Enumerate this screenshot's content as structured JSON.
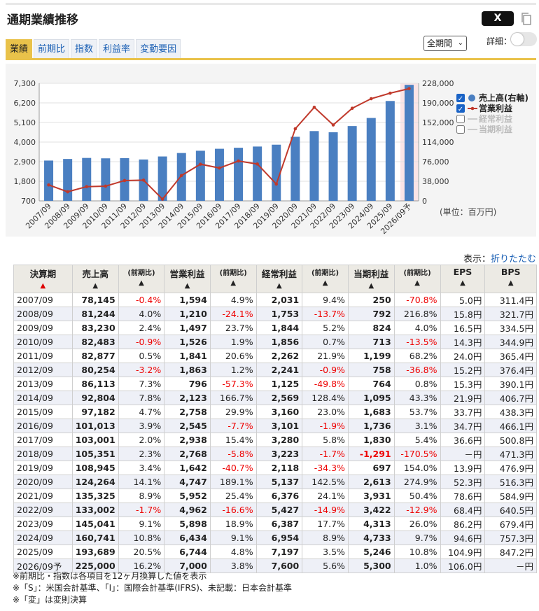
{
  "header": {
    "title": "通期業績推移",
    "x_label": "X",
    "period_select": "全期間",
    "detail_label": "詳細："
  },
  "tabs": [
    {
      "label": "業績",
      "active": true
    },
    {
      "label": "前期比"
    },
    {
      "label": "指数"
    },
    {
      "label": "利益率"
    },
    {
      "label": "変動要因"
    }
  ],
  "chart_data": {
    "type": "bar+line",
    "categories": [
      "2007/09",
      "2008/09",
      "2009/09",
      "2010/09",
      "2011/09",
      "2012/09",
      "2013/09",
      "2014/09",
      "2015/09",
      "2016/09",
      "2017/09",
      "2018/09",
      "2019/09",
      "2020/09",
      "2021/09",
      "2022/09",
      "2023/09",
      "2024/09",
      "2025/09",
      "2026/09予"
    ],
    "left_axis": {
      "ticks": [
        "7,300",
        "6,200",
        "5,100",
        "4,000",
        "2,900",
        "1,800",
        "700"
      ],
      "range": [
        700,
        7300
      ]
    },
    "right_axis": {
      "ticks": [
        "228,000",
        "190,000",
        "152,000",
        "114,000",
        "76,000",
        "38,000",
        "0"
      ],
      "range": [
        0,
        228000
      ]
    },
    "series": [
      {
        "name": "売上高(右軸)",
        "type": "bar",
        "axis": "right",
        "color": "#4a7fc1",
        "values": [
          78145,
          81244,
          83230,
          82483,
          82877,
          80254,
          86113,
          92804,
          97182,
          101013,
          103001,
          105351,
          108945,
          124264,
          135325,
          133002,
          145041,
          160741,
          193689,
          225000
        ]
      },
      {
        "name": "営業利益",
        "type": "line",
        "axis": "left",
        "color": "#c0392b",
        "values": [
          1594,
          1210,
          1497,
          1526,
          1841,
          1863,
          796,
          2123,
          2758,
          2545,
          2938,
          2768,
          1642,
          4747,
          5952,
          4962,
          5898,
          6434,
          6744,
          7000
        ]
      },
      {
        "name": "経常利益",
        "type": "line",
        "disabled": true
      },
      {
        "name": "当期利益",
        "type": "line",
        "disabled": true
      }
    ],
    "forecast_index": 19,
    "unit": "(単位：百万円)"
  },
  "table": {
    "display_label": "表示：",
    "collapse_label": "折りたたむ",
    "headers": [
      {
        "label": "決算期",
        "tri": "▲",
        "tri_red": true
      },
      {
        "label": "売上高",
        "tri": "▲"
      },
      {
        "label": "(前期比)",
        "tri": "▲",
        "sub": true
      },
      {
        "label": "営業利益",
        "tri": "▲"
      },
      {
        "label": "(前期比)",
        "tri": "▲",
        "sub": true
      },
      {
        "label": "経常利益",
        "tri": "▲"
      },
      {
        "label": "(前期比)",
        "tri": "▲",
        "sub": true
      },
      {
        "label": "当期利益",
        "tri": "▲"
      },
      {
        "label": "(前期比)",
        "tri": "▲",
        "sub": true
      },
      {
        "label": "EPS",
        "tri": "▲"
      },
      {
        "label": "BPS",
        "tri": "▲"
      }
    ],
    "rows": [
      [
        "2007/09",
        "78,145",
        "-0.4%",
        "1,594",
        "4.9%",
        "2,031",
        "9.4%",
        "250",
        "-70.8%",
        "5.0円",
        "311.4円"
      ],
      [
        "2008/09",
        "81,244",
        "4.0%",
        "1,210",
        "-24.1%",
        "1,753",
        "-13.7%",
        "792",
        "216.8%",
        "15.8円",
        "321.7円"
      ],
      [
        "2009/09",
        "83,230",
        "2.4%",
        "1,497",
        "23.7%",
        "1,844",
        "5.2%",
        "824",
        "4.0%",
        "16.5円",
        "334.5円"
      ],
      [
        "2010/09",
        "82,483",
        "-0.9%",
        "1,526",
        "1.9%",
        "1,856",
        "0.7%",
        "713",
        "-13.5%",
        "14.3円",
        "344.9円"
      ],
      [
        "2011/09",
        "82,877",
        "0.5%",
        "1,841",
        "20.6%",
        "2,262",
        "21.9%",
        "1,199",
        "68.2%",
        "24.0円",
        "365.4円"
      ],
      [
        "2012/09",
        "80,254",
        "-3.2%",
        "1,863",
        "1.2%",
        "2,241",
        "-0.9%",
        "758",
        "-36.8%",
        "15.2円",
        "376.4円"
      ],
      [
        "2013/09",
        "86,113",
        "7.3%",
        "796",
        "-57.3%",
        "1,125",
        "-49.8%",
        "764",
        "0.8%",
        "15.3円",
        "390.1円"
      ],
      [
        "2014/09",
        "92,804",
        "7.8%",
        "2,123",
        "166.7%",
        "2,569",
        "128.4%",
        "1,095",
        "43.3%",
        "21.9円",
        "406.7円"
      ],
      [
        "2015/09",
        "97,182",
        "4.7%",
        "2,758",
        "29.9%",
        "3,160",
        "23.0%",
        "1,683",
        "53.7%",
        "33.7円",
        "438.3円"
      ],
      [
        "2016/09",
        "101,013",
        "3.9%",
        "2,545",
        "-7.7%",
        "3,101",
        "-1.9%",
        "1,736",
        "3.1%",
        "34.7円",
        "466.1円"
      ],
      [
        "2017/09",
        "103,001",
        "2.0%",
        "2,938",
        "15.4%",
        "3,280",
        "5.8%",
        "1,830",
        "5.4%",
        "36.6円",
        "500.8円"
      ],
      [
        "2018/09",
        "105,351",
        "2.3%",
        "2,768",
        "-5.8%",
        "3,223",
        "-1.7%",
        "-1,291",
        "-170.5%",
        "－円",
        "471.3円"
      ],
      [
        "2019/09",
        "108,945",
        "3.4%",
        "1,642",
        "-40.7%",
        "2,118",
        "-34.3%",
        "697",
        "154.0%",
        "13.9円",
        "476.9円"
      ],
      [
        "2020/09",
        "124,264",
        "14.1%",
        "4,747",
        "189.1%",
        "5,137",
        "142.5%",
        "2,613",
        "274.9%",
        "52.3円",
        "516.3円"
      ],
      [
        "2021/09",
        "135,325",
        "8.9%",
        "5,952",
        "25.4%",
        "6,376",
        "24.1%",
        "3,931",
        "50.4%",
        "78.6円",
        "584.9円"
      ],
      [
        "2022/09",
        "133,002",
        "-1.7%",
        "4,962",
        "-16.6%",
        "5,427",
        "-14.9%",
        "3,422",
        "-12.9%",
        "68.4円",
        "640.5円"
      ],
      [
        "2023/09",
        "145,041",
        "9.1%",
        "5,898",
        "18.9%",
        "6,387",
        "17.7%",
        "4,313",
        "26.0%",
        "86.2円",
        "679.4円"
      ],
      [
        "2024/09",
        "160,741",
        "10.8%",
        "6,434",
        "9.1%",
        "6,954",
        "8.9%",
        "4,733",
        "9.7%",
        "94.6円",
        "757.3円"
      ],
      [
        "2025/09",
        "193,689",
        "20.5%",
        "6,744",
        "4.8%",
        "7,197",
        "3.5%",
        "5,246",
        "10.8%",
        "104.9円",
        "847.2円"
      ],
      [
        "2026/09予",
        "225,000",
        "16.2%",
        "7,000",
        "3.8%",
        "7,600",
        "5.6%",
        "5,300",
        "1.0%",
        "106.0円",
        "－円"
      ]
    ]
  },
  "notes": [
    "※前期比・指数は各項目を12ヶ月換算した値を表示",
    "※「S」：米国会計基準、「I」：国際会計基準(IFRS)、未記載：日本会計基準",
    "※「変」は変則決算"
  ]
}
